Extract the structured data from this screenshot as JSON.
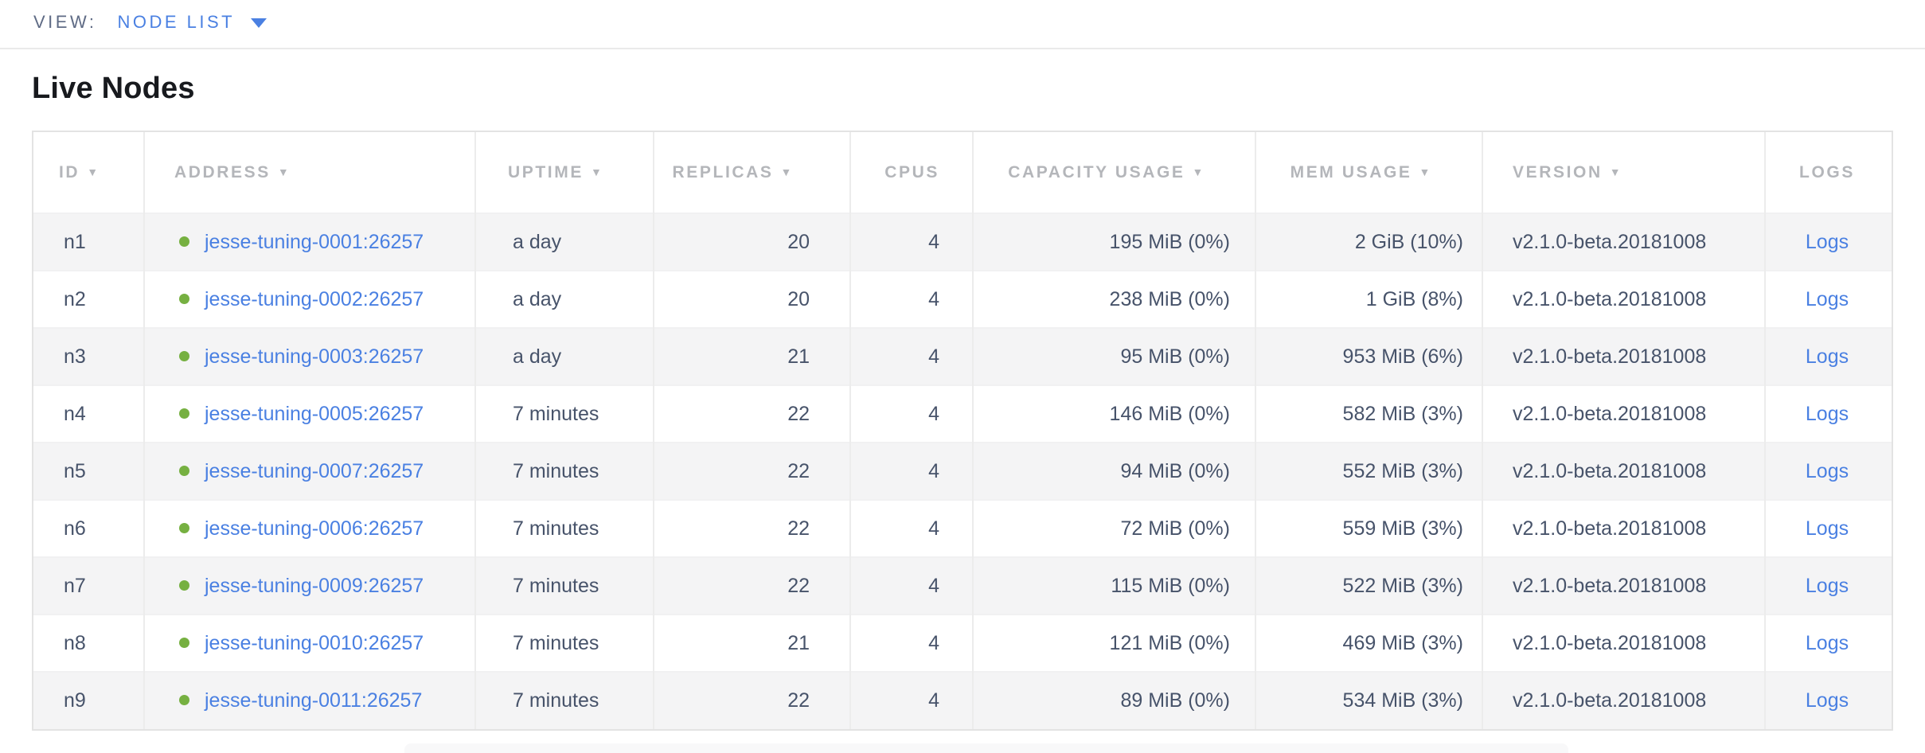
{
  "topbar": {
    "view_label": "VIEW:",
    "view_value": "NODE LIST"
  },
  "page": {
    "title": "Live Nodes"
  },
  "table": {
    "sort_indicator": "▼",
    "columns": [
      {
        "label": "ID",
        "sortable": true
      },
      {
        "label": "ADDRESS",
        "sortable": true
      },
      {
        "label": "UPTIME",
        "sortable": true
      },
      {
        "label": "REPLICAS",
        "sortable": true
      },
      {
        "label": "CPUS",
        "sortable": false
      },
      {
        "label": "CAPACITY USAGE",
        "sortable": true
      },
      {
        "label": "MEM USAGE",
        "sortable": true
      },
      {
        "label": "VERSION",
        "sortable": true
      },
      {
        "label": "LOGS",
        "sortable": false
      }
    ],
    "rows": [
      {
        "id": "n1",
        "status": "live",
        "address": "jesse-tuning-0001:26257",
        "uptime": "a day",
        "replicas": "20",
        "cpus": "4",
        "capacity": "195 MiB (0%)",
        "mem": "2 GiB (10%)",
        "version": "v2.1.0-beta.20181008",
        "logs": "Logs"
      },
      {
        "id": "n2",
        "status": "live",
        "address": "jesse-tuning-0002:26257",
        "uptime": "a day",
        "replicas": "20",
        "cpus": "4",
        "capacity": "238 MiB (0%)",
        "mem": "1 GiB (8%)",
        "version": "v2.1.0-beta.20181008",
        "logs": "Logs"
      },
      {
        "id": "n3",
        "status": "live",
        "address": "jesse-tuning-0003:26257",
        "uptime": "a day",
        "replicas": "21",
        "cpus": "4",
        "capacity": "95 MiB (0%)",
        "mem": "953 MiB (6%)",
        "version": "v2.1.0-beta.20181008",
        "logs": "Logs"
      },
      {
        "id": "n4",
        "status": "live",
        "address": "jesse-tuning-0005:26257",
        "uptime": "7 minutes",
        "replicas": "22",
        "cpus": "4",
        "capacity": "146 MiB (0%)",
        "mem": "582 MiB (3%)",
        "version": "v2.1.0-beta.20181008",
        "logs": "Logs"
      },
      {
        "id": "n5",
        "status": "live",
        "address": "jesse-tuning-0007:26257",
        "uptime": "7 minutes",
        "replicas": "22",
        "cpus": "4",
        "capacity": "94 MiB (0%)",
        "mem": "552 MiB (3%)",
        "version": "v2.1.0-beta.20181008",
        "logs": "Logs"
      },
      {
        "id": "n6",
        "status": "live",
        "address": "jesse-tuning-0006:26257",
        "uptime": "7 minutes",
        "replicas": "22",
        "cpus": "4",
        "capacity": "72 MiB (0%)",
        "mem": "559 MiB (3%)",
        "version": "v2.1.0-beta.20181008",
        "logs": "Logs"
      },
      {
        "id": "n7",
        "status": "live",
        "address": "jesse-tuning-0009:26257",
        "uptime": "7 minutes",
        "replicas": "22",
        "cpus": "4",
        "capacity": "115 MiB (0%)",
        "mem": "522 MiB (3%)",
        "version": "v2.1.0-beta.20181008",
        "logs": "Logs"
      },
      {
        "id": "n8",
        "status": "live",
        "address": "jesse-tuning-0010:26257",
        "uptime": "7 minutes",
        "replicas": "21",
        "cpus": "4",
        "capacity": "121 MiB (0%)",
        "mem": "469 MiB (3%)",
        "version": "v2.1.0-beta.20181008",
        "logs": "Logs"
      },
      {
        "id": "n9",
        "status": "live",
        "address": "jesse-tuning-0011:26257",
        "uptime": "7 minutes",
        "replicas": "22",
        "cpus": "4",
        "capacity": "89 MiB (0%)",
        "mem": "534 MiB (3%)",
        "version": "v2.1.0-beta.20181008",
        "logs": "Logs"
      }
    ]
  },
  "colors": {
    "link_blue": "#4a80e2",
    "live_node_green": "#76b041",
    "header_gray": "#b4b6ba",
    "cell_text": "#47536a",
    "row_stripe": "#f4f4f5"
  }
}
